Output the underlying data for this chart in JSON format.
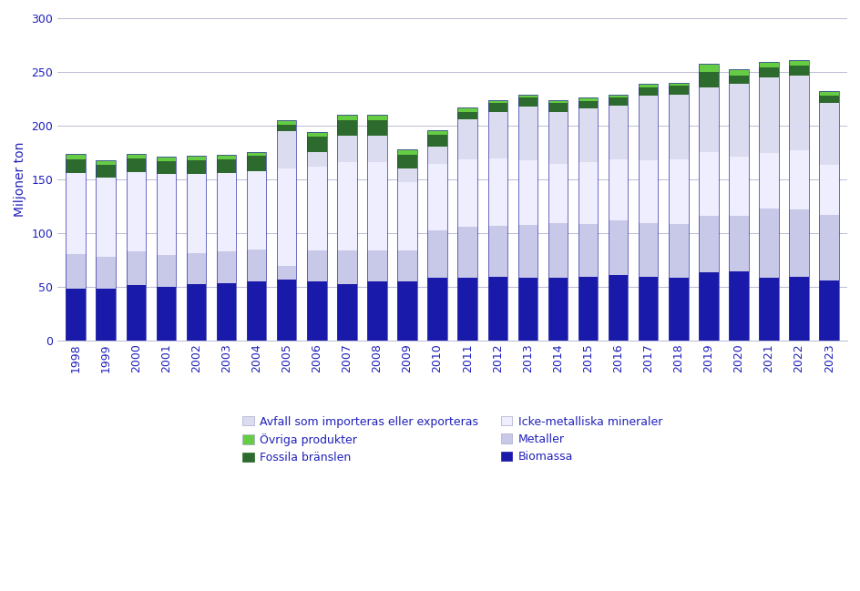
{
  "years": [
    1998,
    1999,
    2000,
    2001,
    2002,
    2003,
    2004,
    2005,
    2006,
    2007,
    2008,
    2009,
    2010,
    2011,
    2012,
    2013,
    2014,
    2015,
    2016,
    2017,
    2018,
    2019,
    2020,
    2021,
    2022,
    2023
  ],
  "biomassa": [
    49,
    49,
    52,
    50,
    53,
    54,
    55,
    57,
    55,
    53,
    55,
    55,
    59,
    59,
    60,
    59,
    59,
    60,
    61,
    60,
    59,
    64,
    65,
    59,
    60,
    56
  ],
  "metaller": [
    32,
    29,
    31,
    30,
    29,
    29,
    30,
    13,
    29,
    31,
    29,
    29,
    44,
    47,
    47,
    49,
    51,
    49,
    51,
    50,
    50,
    52,
    51,
    64,
    62,
    61
  ],
  "icke_met": [
    75,
    74,
    74,
    75,
    73,
    73,
    73,
    90,
    78,
    82,
    82,
    64,
    62,
    63,
    63,
    60,
    55,
    57,
    57,
    58,
    60,
    60,
    55,
    52,
    55,
    47
  ],
  "avfall": [
    0,
    0,
    0,
    0,
    0,
    0,
    0,
    35,
    14,
    25,
    25,
    12,
    16,
    37,
    43,
    50,
    48,
    50,
    50,
    60,
    60,
    60,
    68,
    70,
    70,
    57
  ],
  "fossila": [
    13,
    12,
    13,
    12,
    13,
    13,
    14,
    6,
    14,
    14,
    14,
    13,
    11,
    7,
    8,
    8,
    8,
    7,
    7,
    8,
    8,
    14,
    8,
    9,
    9,
    7
  ],
  "ovriga": [
    5,
    4,
    4,
    4,
    4,
    4,
    4,
    4,
    4,
    5,
    5,
    5,
    4,
    4,
    3,
    3,
    3,
    3,
    3,
    3,
    3,
    8,
    6,
    5,
    5,
    4
  ],
  "colors": {
    "biomassa": "#1a1aaa",
    "metaller": "#c8c8e8",
    "icke_met": "#eeeeff",
    "avfall": "#dcdcf0",
    "fossila": "#2d6a2d",
    "ovriga": "#66cc44"
  },
  "ylabel": "Miljoner ton",
  "ylim": [
    0,
    300
  ],
  "yticks": [
    0,
    50,
    100,
    150,
    200,
    250,
    300
  ],
  "legend": [
    {
      "label": "Avfall som importeras eller exporteras",
      "color": "#dcdcf0"
    },
    {
      "label": "Övriga produkter",
      "color": "#66cc44"
    },
    {
      "label": "Fossila bränslen",
      "color": "#2d6a2d"
    },
    {
      "label": "Icke-metalliska mineraler",
      "color": "#eeeeff"
    },
    {
      "label": "Metaller",
      "color": "#c8c8e8"
    },
    {
      "label": "Biomassa",
      "color": "#1a1aaa"
    }
  ]
}
